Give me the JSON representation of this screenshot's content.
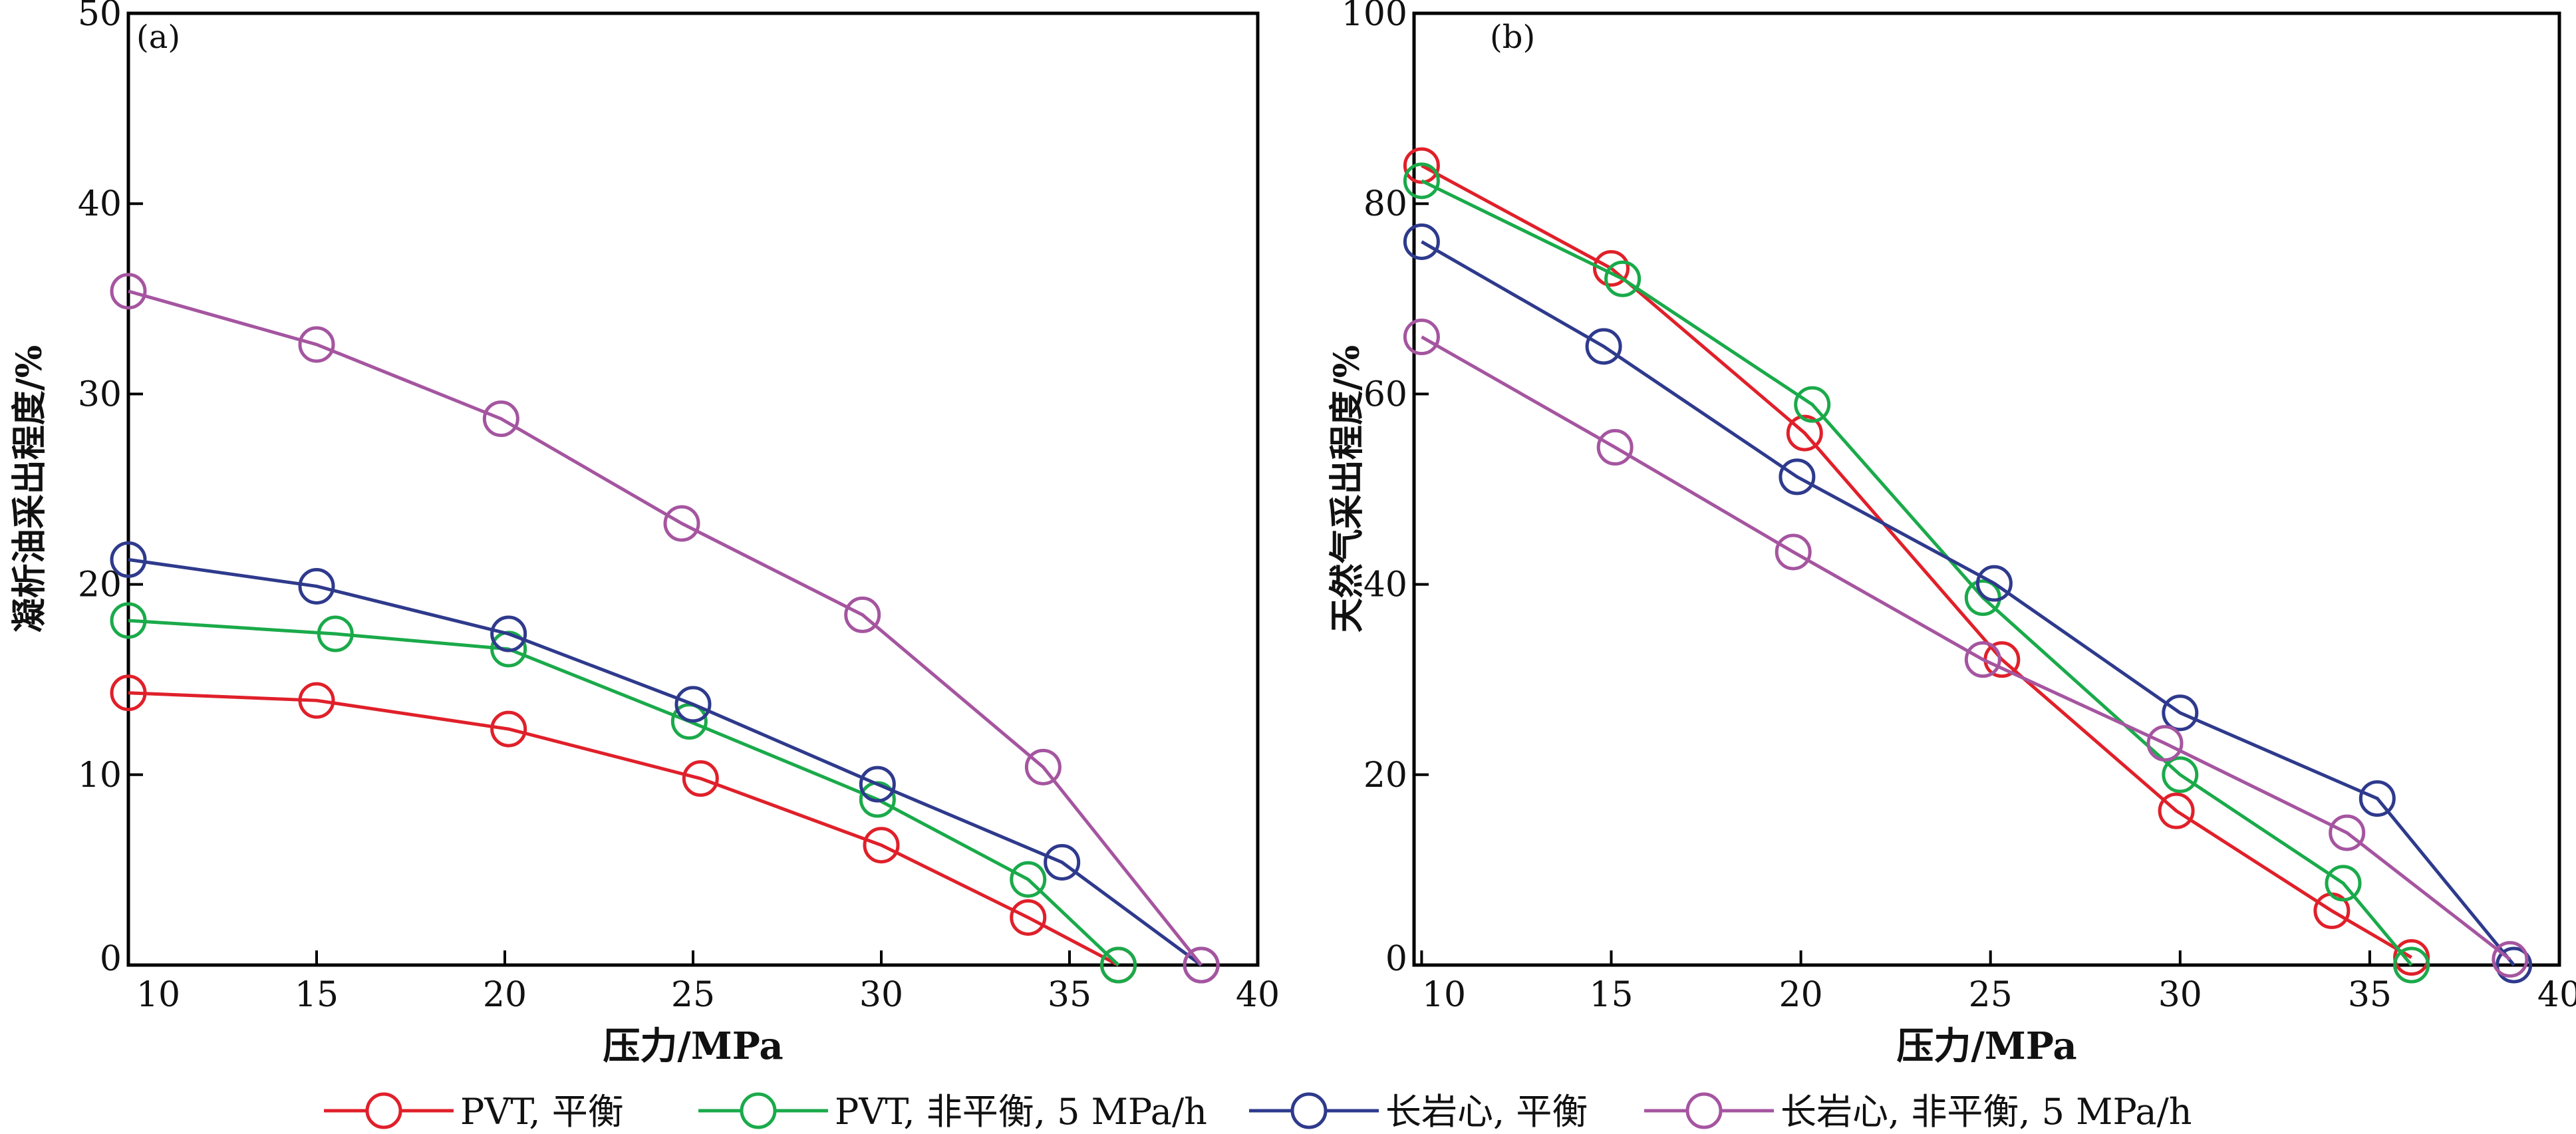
{
  "colors": {
    "pvt_eq": "#e0202a",
    "pvt_noneq": "#1aaa4a",
    "core_eq": "#2e3a8c",
    "core_noneq": "#a555a0"
  },
  "legend": [
    {
      "label": "PVT, 平衡",
      "color": "#e0202a"
    },
    {
      "label": "PVT, 非平衡, 5 MPa/h",
      "color": "#1aaa4a"
    },
    {
      "label": "长岩心, 平衡",
      "color": "#2e3a8c"
    },
    {
      "label": "长岩心, 非平衡, 5 MPa/h",
      "color": "#a555a0"
    }
  ],
  "chart_data": [
    {
      "type": "line",
      "panel_label": "(a)",
      "xlabel": "压力/MPa",
      "ylabel": "凝析油采出程度/%",
      "xlim": [
        10,
        40
      ],
      "ylim": [
        0,
        50
      ],
      "xticks": [
        10,
        15,
        20,
        25,
        30,
        35,
        40
      ],
      "yticks": [
        0,
        10,
        20,
        30,
        40,
        50
      ],
      "marker": "open-circle",
      "grid": false,
      "series": [
        {
          "name": "PVT, 平衡",
          "color": "#e0202a",
          "x": [
            10,
            15,
            20.1,
            25.2,
            30,
            33.9,
            36.3
          ],
          "y": [
            14.3,
            13.9,
            12.4,
            9.8,
            6.3,
            2.5,
            0
          ]
        },
        {
          "name": "PVT, 非平衡, 5 MPa/h",
          "color": "#1aaa4a",
          "x": [
            10,
            15.5,
            20.1,
            24.9,
            29.9,
            33.9,
            36.3
          ],
          "y": [
            18.1,
            17.4,
            16.6,
            12.8,
            8.7,
            4.5,
            0
          ]
        },
        {
          "name": "长岩心, 平衡",
          "color": "#2e3a8c",
          "x": [
            10,
            15,
            20.1,
            25,
            29.9,
            34.8,
            38.5
          ],
          "y": [
            21.3,
            19.9,
            17.4,
            13.7,
            9.5,
            5.4,
            0
          ]
        },
        {
          "name": "长岩心, 非平衡, 5 MPa/h",
          "color": "#a555a0",
          "x": [
            10,
            15,
            19.9,
            24.7,
            29.5,
            34.3,
            38.5
          ],
          "y": [
            35.4,
            32.6,
            28.7,
            23.2,
            18.4,
            10.4,
            0
          ]
        }
      ]
    },
    {
      "type": "line",
      "panel_label": "(b)",
      "xlabel": "压力/MPa",
      "ylabel": "天然气采出程度/%",
      "xlim": [
        9.8,
        40
      ],
      "ylim": [
        0,
        100
      ],
      "xticks": [
        10,
        15,
        20,
        25,
        30,
        35,
        40
      ],
      "yticks": [
        0,
        20,
        40,
        60,
        80,
        100
      ],
      "marker": "open-circle",
      "grid": false,
      "series": [
        {
          "name": "PVT, 平衡",
          "color": "#e0202a",
          "x": [
            10,
            15,
            20.1,
            25.3,
            29.9,
            34,
            36.1
          ],
          "y": [
            84,
            73.2,
            55.9,
            32.1,
            16.2,
            5.7,
            0.8
          ]
        },
        {
          "name": "PVT, 非平衡, 5 MPa/h",
          "color": "#1aaa4a",
          "x": [
            10,
            15.3,
            20.3,
            24.8,
            30,
            34.3,
            36.1
          ],
          "y": [
            82.4,
            72.1,
            58.9,
            38.6,
            20,
            8.6,
            0
          ]
        },
        {
          "name": "长岩心, 平衡",
          "color": "#2e3a8c",
          "x": [
            10,
            14.8,
            19.9,
            25.1,
            30,
            35.2,
            38.8
          ],
          "y": [
            76,
            65,
            51.3,
            40.1,
            26.5,
            17.5,
            0
          ]
        },
        {
          "name": "长岩心, 非平衡, 5 MPa/h",
          "color": "#a555a0",
          "x": [
            10,
            15.1,
            19.8,
            24.8,
            29.6,
            34.4,
            38.7
          ],
          "y": [
            66,
            54.4,
            43.4,
            32.1,
            23.3,
            13.9,
            0.6
          ]
        }
      ]
    }
  ]
}
